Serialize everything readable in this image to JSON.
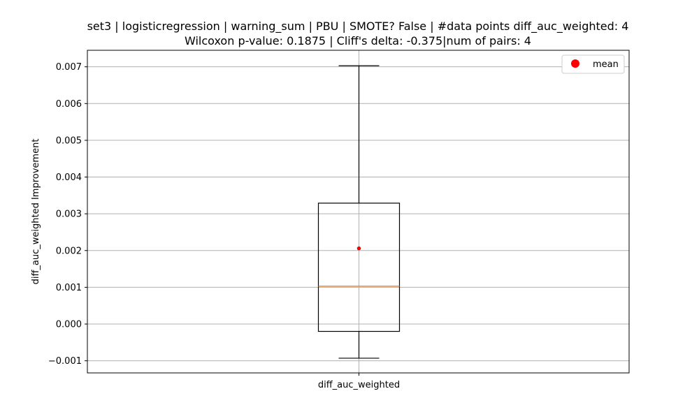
{
  "chart_data": {
    "type": "box",
    "title_line1": "set3 | logisticregression | warning_sum | PBU | SMOTE? False | #data points diff_auc_weighted: 4",
    "title_line2": "Wilcoxon p-value: 0.1875 | Cliff's delta: -0.375|num of pairs: 4",
    "xlabel": "",
    "ylabel": "diff_auc_weighted Improvement",
    "categories": [
      "diff_auc_weighted"
    ],
    "ylim": [
      -0.00133,
      0.00745
    ],
    "yticks": [
      -0.001,
      0.0,
      0.001,
      0.002,
      0.003,
      0.004,
      0.005,
      0.006,
      0.007
    ],
    "ytick_labels": [
      "−0.001",
      "0.000",
      "0.001",
      "0.002",
      "0.003",
      "0.004",
      "0.005",
      "0.006",
      "0.007"
    ],
    "grid": true,
    "legend": {
      "position": "top-right",
      "entries": [
        {
          "label": "mean",
          "color": "#ff0000",
          "marker": "circle"
        }
      ]
    },
    "box": {
      "whisker_low": -0.00093,
      "q1": -0.0002,
      "median": 0.00103,
      "q3": 0.00329,
      "whisker_high": 0.00703,
      "mean": 0.00206
    },
    "colors": {
      "box": "#000000",
      "median": "#ff7f0e",
      "mean": "#ff0000",
      "grid": "#b0b0b0"
    }
  }
}
